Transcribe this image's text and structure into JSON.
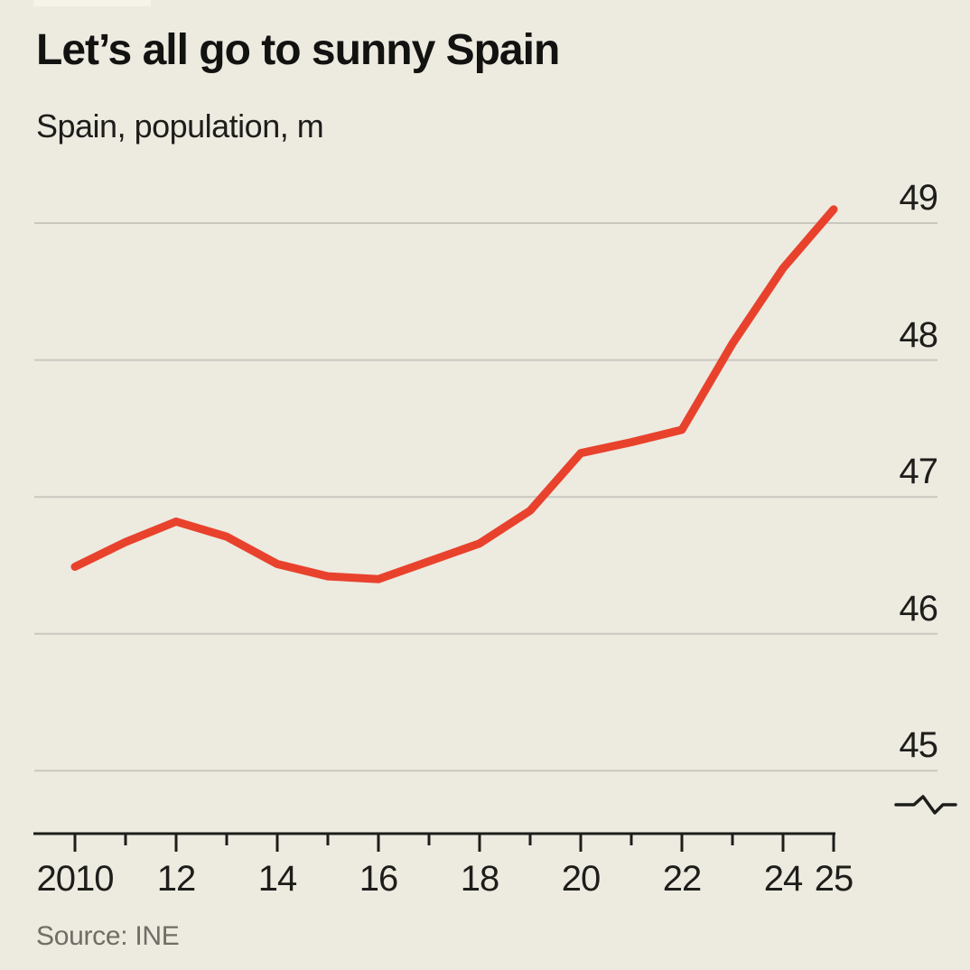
{
  "header": {
    "title": "Let’s all go to sunny Spain",
    "subtitle": "Spain, population, m"
  },
  "source": {
    "label": "Source: INE"
  },
  "colors": {
    "background": "#edeae0",
    "line": "#e8422d",
    "gridline": "#c9c8bf",
    "axis": "#1d1d1a",
    "text": "#1d1d1a",
    "source_text": "#6f6e64"
  },
  "chart_data": {
    "type": "line",
    "title": "Let’s all go to sunny Spain",
    "subtitle": "Spain, population, m",
    "x": [
      2010,
      2011,
      2012,
      2013,
      2014,
      2015,
      2016,
      2017,
      2018,
      2019,
      2020,
      2021,
      2022,
      2023,
      2024,
      2025
    ],
    "series": [
      {
        "name": "Spain population (millions)",
        "values": [
          46.49,
          46.67,
          46.82,
          46.71,
          46.51,
          46.42,
          46.4,
          46.53,
          46.66,
          46.9,
          47.32,
          47.4,
          47.49,
          48.12,
          48.67,
          49.1
        ],
        "color": "#e8422d"
      }
    ],
    "xlabel": "",
    "ylabel": "",
    "ylim": [
      44.8,
      49.35
    ],
    "y_ticks": [
      49,
      48,
      47,
      46,
      45
    ],
    "x_ticks": [
      {
        "label": "2010",
        "year": 2010,
        "major": true
      },
      {
        "label": "",
        "year": 2011,
        "major": false
      },
      {
        "label": "12",
        "year": 2012,
        "major": true
      },
      {
        "label": "",
        "year": 2013,
        "major": false
      },
      {
        "label": "14",
        "year": 2014,
        "major": true
      },
      {
        "label": "",
        "year": 2015,
        "major": false
      },
      {
        "label": "16",
        "year": 2016,
        "major": true
      },
      {
        "label": "",
        "year": 2017,
        "major": false
      },
      {
        "label": "18",
        "year": 2018,
        "major": true
      },
      {
        "label": "",
        "year": 2019,
        "major": false
      },
      {
        "label": "20",
        "year": 2020,
        "major": true
      },
      {
        "label": "",
        "year": 2021,
        "major": false
      },
      {
        "label": "22",
        "year": 2022,
        "major": true
      },
      {
        "label": "",
        "year": 2023,
        "major": false
      },
      {
        "label": "24",
        "year": 2024,
        "major": true
      },
      {
        "label": "25",
        "year": 2025,
        "major": true
      }
    ],
    "grid": "horizontal",
    "legend_position": "none",
    "axis_break_marker": true,
    "source": "Source: INE"
  }
}
